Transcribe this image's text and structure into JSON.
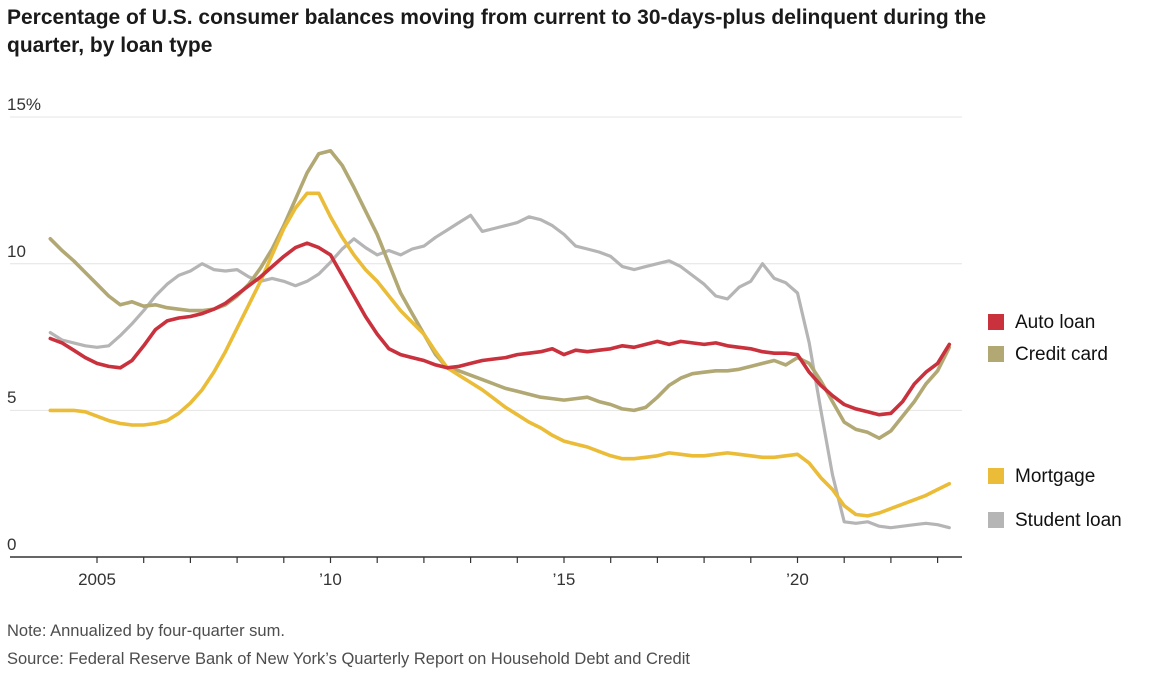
{
  "title": "Percentage of U.S. consumer balances moving from current to 30-days-plus delinquent during the quarter, by loan type",
  "note": "Note: Annualized by four-quarter sum.",
  "source": "Source: Federal Reserve Bank of New York’s Quarterly Report on Household Debt and Credit",
  "colors": {
    "auto_loan": "#c9313d",
    "credit_card": "#b1a874",
    "mortgage": "#eabc38",
    "student_loan": "#b5b5b6",
    "gridline": "#e4e4e4",
    "axis": "#333333"
  },
  "chart_data": {
    "type": "line",
    "x_unit": "year (quarterly)",
    "x": [
      2004,
      2004.25,
      2004.5,
      2004.75,
      2005,
      2005.25,
      2005.5,
      2005.75,
      2006,
      2006.25,
      2006.5,
      2006.75,
      2007,
      2007.25,
      2007.5,
      2007.75,
      2008,
      2008.25,
      2008.5,
      2008.75,
      2009,
      2009.25,
      2009.5,
      2009.75,
      2010,
      2010.25,
      2010.5,
      2010.75,
      2011,
      2011.25,
      2011.5,
      2011.75,
      2012,
      2012.25,
      2012.5,
      2012.75,
      2013,
      2013.25,
      2013.5,
      2013.75,
      2014,
      2014.25,
      2014.5,
      2014.75,
      2015,
      2015.25,
      2015.5,
      2015.75,
      2016,
      2016.25,
      2016.5,
      2016.75,
      2017,
      2017.25,
      2017.5,
      2017.75,
      2018,
      2018.25,
      2018.5,
      2018.75,
      2019,
      2019.25,
      2019.5,
      2019.75,
      2020,
      2020.25,
      2020.5,
      2020.75,
      2021,
      2021.25,
      2021.5,
      2021.75,
      2022,
      2022.25,
      2022.5,
      2022.75,
      2023,
      2023.25
    ],
    "series": [
      {
        "name": "Auto loan",
        "color": "#c9313d",
        "legend_group": "top",
        "values": [
          7.45,
          7.3,
          7.05,
          6.8,
          6.6,
          6.5,
          6.45,
          6.7,
          7.2,
          7.75,
          8.05,
          8.15,
          8.2,
          8.3,
          8.45,
          8.65,
          8.95,
          9.25,
          9.55,
          9.9,
          10.25,
          10.55,
          10.7,
          10.55,
          10.3,
          9.6,
          8.9,
          8.2,
          7.6,
          7.1,
          6.9,
          6.8,
          6.7,
          6.55,
          6.45,
          6.5,
          6.6,
          6.7,
          6.75,
          6.8,
          6.9,
          6.95,
          7.0,
          7.1,
          6.9,
          7.05,
          7.0,
          7.05,
          7.1,
          7.2,
          7.15,
          7.25,
          7.35,
          7.25,
          7.35,
          7.3,
          7.25,
          7.3,
          7.2,
          7.15,
          7.1,
          7.0,
          6.95,
          6.95,
          6.9,
          6.3,
          5.85,
          5.5,
          5.2,
          5.05,
          4.95,
          4.85,
          4.9,
          5.3,
          5.9,
          6.3,
          6.6,
          7.25
        ]
      },
      {
        "name": "Credit card",
        "color": "#b1a874",
        "legend_group": "top",
        "values": [
          10.85,
          10.45,
          10.1,
          9.7,
          9.3,
          8.9,
          8.6,
          8.7,
          8.55,
          8.6,
          8.5,
          8.45,
          8.4,
          8.4,
          8.45,
          8.6,
          8.9,
          9.3,
          9.85,
          10.5,
          11.3,
          12.2,
          13.1,
          13.75,
          13.85,
          13.35,
          12.6,
          11.8,
          11.0,
          10.0,
          9.0,
          8.3,
          7.6,
          6.9,
          6.45,
          6.35,
          6.2,
          6.05,
          5.9,
          5.75,
          5.65,
          5.55,
          5.45,
          5.4,
          5.35,
          5.4,
          5.45,
          5.3,
          5.2,
          5.05,
          5.0,
          5.1,
          5.45,
          5.85,
          6.1,
          6.25,
          6.3,
          6.35,
          6.35,
          6.4,
          6.5,
          6.6,
          6.7,
          6.55,
          6.8,
          6.6,
          6.0,
          5.3,
          4.6,
          4.35,
          4.25,
          4.05,
          4.3,
          4.8,
          5.3,
          5.9,
          6.35,
          7.15
        ]
      },
      {
        "name": "Mortgage",
        "color": "#eabc38",
        "legend_group": "bottom",
        "values": [
          5.0,
          5.0,
          5.0,
          4.95,
          4.8,
          4.65,
          4.55,
          4.5,
          4.5,
          4.55,
          4.65,
          4.9,
          5.25,
          5.7,
          6.3,
          7.0,
          7.8,
          8.6,
          9.4,
          10.3,
          11.2,
          11.9,
          12.4,
          12.4,
          11.6,
          10.9,
          10.3,
          9.8,
          9.4,
          8.9,
          8.4,
          8.0,
          7.6,
          7.0,
          6.45,
          6.2,
          5.95,
          5.7,
          5.4,
          5.1,
          4.85,
          4.6,
          4.4,
          4.15,
          3.95,
          3.85,
          3.75,
          3.6,
          3.45,
          3.35,
          3.35,
          3.4,
          3.45,
          3.55,
          3.5,
          3.45,
          3.45,
          3.5,
          3.55,
          3.5,
          3.45,
          3.4,
          3.4,
          3.45,
          3.5,
          3.2,
          2.7,
          2.3,
          1.75,
          1.45,
          1.4,
          1.5,
          1.65,
          1.8,
          1.95,
          2.1,
          2.3,
          2.5
        ]
      },
      {
        "name": "Student loan",
        "color": "#b5b5b6",
        "legend_group": "bottom",
        "values": [
          7.65,
          7.4,
          7.3,
          7.2,
          7.15,
          7.2,
          7.55,
          7.95,
          8.4,
          8.9,
          9.3,
          9.6,
          9.75,
          10.0,
          9.8,
          9.75,
          9.8,
          9.55,
          9.4,
          9.5,
          9.4,
          9.25,
          9.4,
          9.65,
          10.05,
          10.5,
          10.85,
          10.55,
          10.3,
          10.45,
          10.3,
          10.5,
          10.6,
          10.9,
          11.15,
          11.4,
          11.65,
          11.1,
          11.2,
          11.3,
          11.4,
          11.6,
          11.5,
          11.3,
          11.0,
          10.6,
          10.5,
          10.4,
          10.25,
          9.9,
          9.8,
          9.9,
          10.0,
          10.1,
          9.9,
          9.6,
          9.3,
          8.9,
          8.8,
          9.2,
          9.4,
          10.0,
          9.5,
          9.35,
          9.0,
          7.3,
          5.0,
          2.8,
          1.2,
          1.15,
          1.2,
          1.05,
          1.0,
          1.05,
          1.1,
          1.15,
          1.1,
          1.0
        ]
      }
    ],
    "ylim": [
      0,
      15
    ],
    "yticks": [
      0,
      5,
      10,
      15
    ],
    "ytick_labels": [
      "0",
      "5",
      "10",
      "15%"
    ],
    "xticks": [
      2005,
      2010,
      2015,
      2020
    ],
    "xtick_labels": [
      "2005",
      "’10",
      "’15",
      "’20"
    ],
    "minor_xticks": "every year 2005–2023",
    "grid": "horizontal",
    "legend_position": "right"
  },
  "legend": {
    "items": [
      {
        "label": "Auto loan"
      },
      {
        "label": "Credit card"
      },
      {
        "label": "Mortgage"
      },
      {
        "label": "Student loan"
      }
    ]
  }
}
